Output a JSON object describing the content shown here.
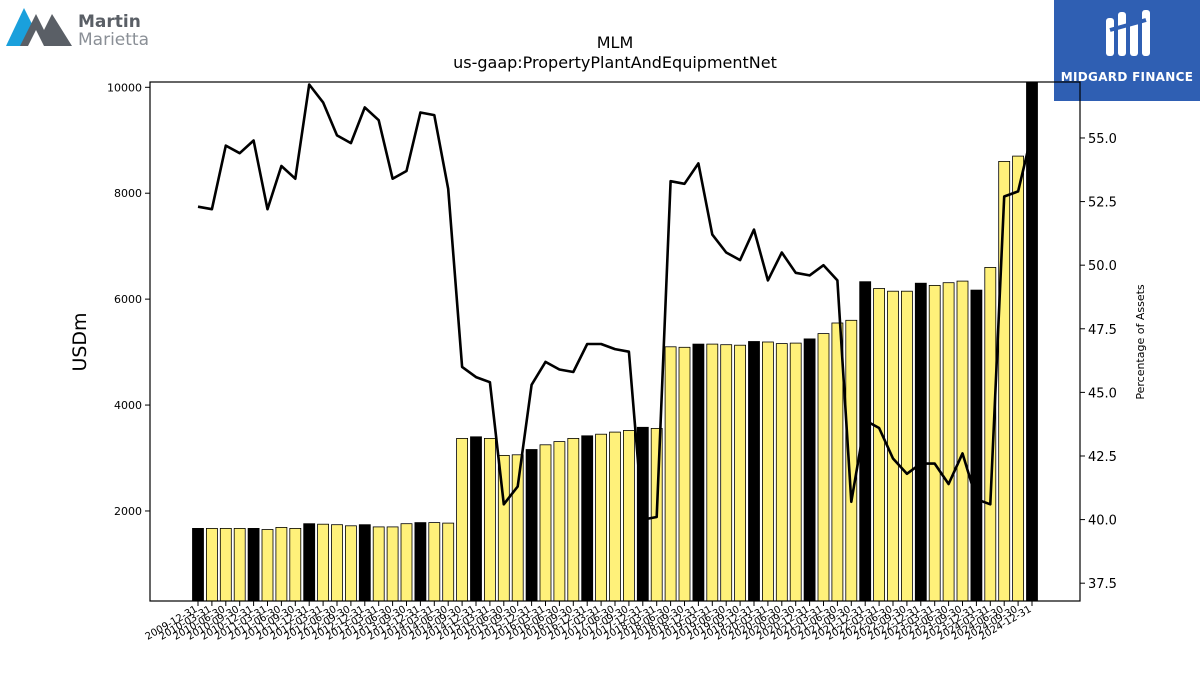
{
  "logos": {
    "left": {
      "line1": "Martin",
      "line2": "Marietta",
      "icon": "mountain-icon",
      "colors": [
        "#1aa0dc",
        "#5a5f66"
      ]
    },
    "right": {
      "text": "MIDGARD FINANCE",
      "icon": "mf-monogram-icon",
      "background": "#2f5fb3"
    }
  },
  "chart_data": {
    "type": "bar",
    "title": "MLM",
    "subtitle": "us-gaap:PropertyPlantAndEquipmentNet",
    "ylabel": "USDm",
    "y2label": "Percentage of Assets",
    "ylim": [
      300,
      10100
    ],
    "y2lim": [
      36.8,
      57.2
    ],
    "yticks": [
      2000,
      4000,
      6000,
      8000,
      10000
    ],
    "y2ticks": [
      "37.5",
      "40.0",
      "42.5",
      "45.0",
      "47.5",
      "50.0",
      "52.5",
      "55.0"
    ],
    "bar_colors": {
      "annual": "#000000",
      "quarterly": "#fff17a"
    },
    "line_color": "#000000",
    "categories": [
      "2009-12-31",
      "2010-03-31",
      "2010-06-30",
      "2010-09-30",
      "2010-12-31",
      "2011-03-31",
      "2011-06-30",
      "2011-09-30",
      "2011-12-31",
      "2012-03-31",
      "2012-06-30",
      "2012-09-30",
      "2012-12-31",
      "2013-03-31",
      "2013-06-30",
      "2013-09-30",
      "2013-12-31",
      "2014-03-31",
      "2014-06-30",
      "2014-09-30",
      "2014-12-31",
      "2015-03-31",
      "2015-06-30",
      "2015-09-30",
      "2015-12-31",
      "2016-03-31",
      "2016-06-30",
      "2016-09-30",
      "2016-12-31",
      "2017-03-31",
      "2017-06-30",
      "2017-09-30",
      "2017-12-31",
      "2018-03-31",
      "2018-06-30",
      "2018-09-30",
      "2018-12-31",
      "2019-03-31",
      "2019-06-30",
      "2019-09-30",
      "2019-12-31",
      "2020-03-31",
      "2020-06-30",
      "2020-09-30",
      "2020-12-31",
      "2021-03-31",
      "2021-06-30",
      "2021-09-30",
      "2021-12-31",
      "2022-03-31",
      "2022-06-30",
      "2022-09-30",
      "2022-12-31",
      "2023-03-31",
      "2023-06-30",
      "2023-09-30",
      "2023-12-31",
      "2024-03-31",
      "2024-06-30",
      "2024-09-30",
      "2024-12-31"
    ],
    "series": [
      {
        "type": "bar",
        "values": [
          1670,
          1670,
          1670,
          1670,
          1670,
          1650,
          1690,
          1670,
          1760,
          1750,
          1740,
          1720,
          1740,
          1700,
          1700,
          1760,
          1780,
          1780,
          1770,
          3370,
          3400,
          3370,
          3050,
          3060,
          3160,
          3250,
          3310,
          3370,
          3420,
          3450,
          3490,
          3520,
          3580,
          3560,
          5100,
          5090,
          5150,
          5150,
          5140,
          5130,
          5200,
          5190,
          5160,
          5170,
          5250,
          5350,
          5550,
          5600,
          6330,
          6200,
          6150,
          6150,
          6300,
          6260,
          6310,
          6340,
          6170,
          6600,
          8600,
          8700,
          10100
        ]
      },
      {
        "type": "line",
        "values": [
          52.3,
          52.2,
          54.7,
          54.4,
          54.9,
          52.2,
          53.9,
          53.4,
          57.1,
          56.4,
          55.1,
          54.8,
          56.2,
          55.7,
          53.4,
          53.7,
          56.0,
          55.9,
          53.0,
          46.0,
          45.6,
          45.4,
          40.6,
          41.3,
          45.3,
          46.2,
          45.9,
          45.8,
          46.9,
          46.9,
          46.7,
          46.6,
          40.0,
          40.1,
          53.3,
          53.2,
          54.0,
          51.2,
          50.5,
          50.2,
          51.4,
          49.4,
          50.5,
          49.7,
          49.6,
          50.0,
          49.4,
          40.7,
          43.9,
          43.6,
          42.4,
          41.8,
          42.2,
          42.2,
          41.4,
          42.6,
          40.8,
          40.6,
          52.7,
          52.9,
          55.2
        ]
      }
    ],
    "grid": false,
    "legend": "none"
  }
}
